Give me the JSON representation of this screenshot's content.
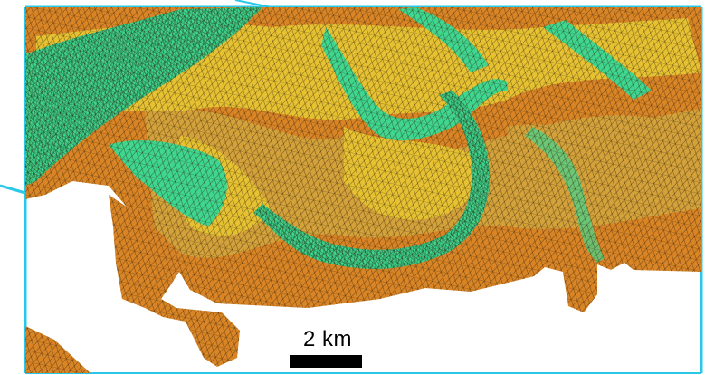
{
  "map": {
    "scale_bar": {
      "label": "2 km"
    },
    "colors": {
      "channel": "#3fd68f",
      "shallow": "#e6c233",
      "mid": "#d4a23a",
      "upland": "#d98526",
      "mesh_line": "#2a1a05",
      "frame": "#29c8e8",
      "background": "#ffffff"
    }
  }
}
